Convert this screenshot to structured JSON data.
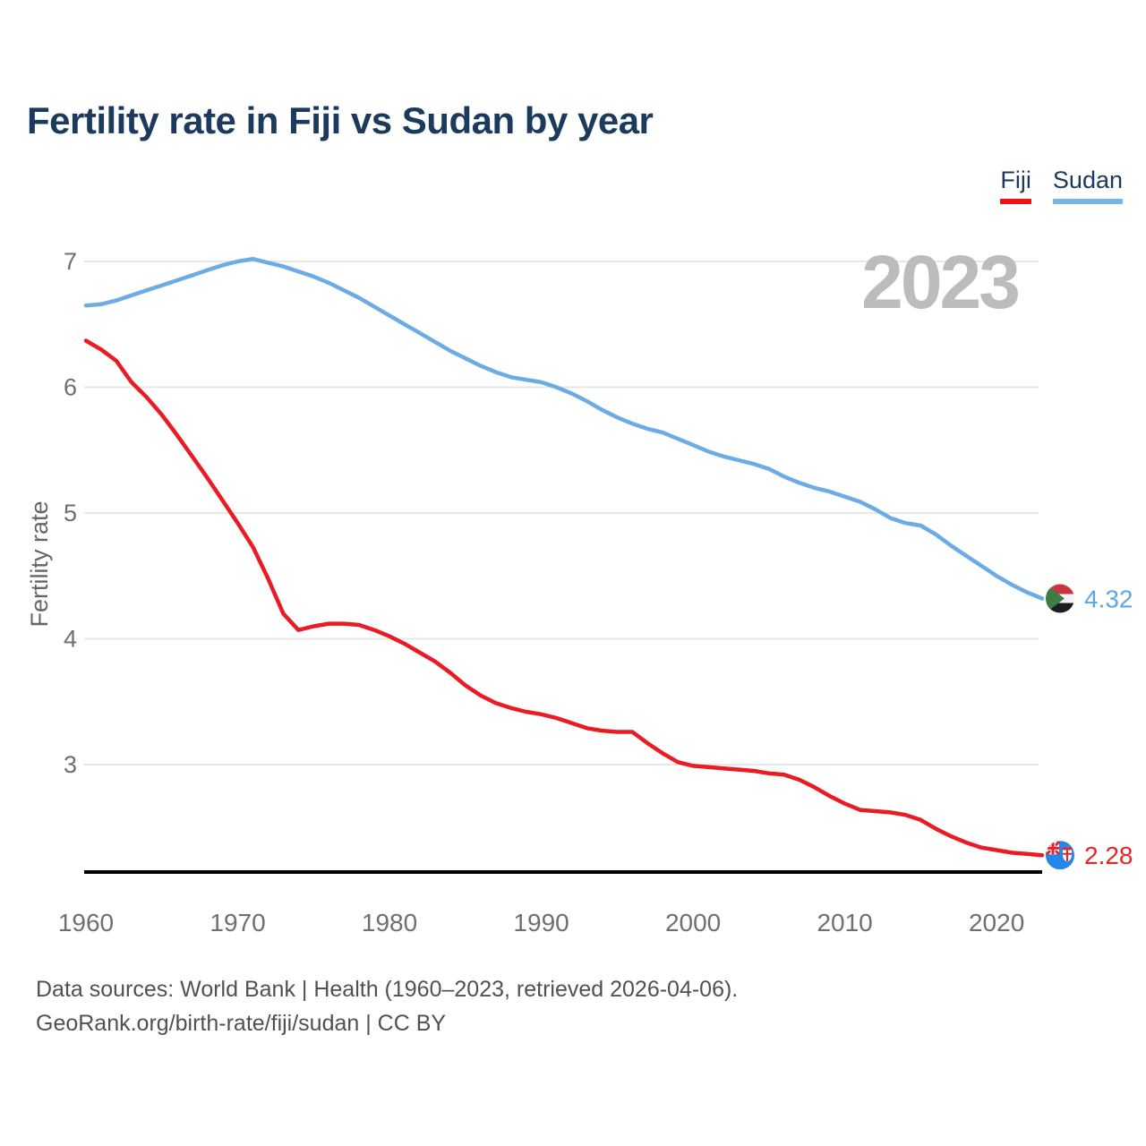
{
  "page": {
    "title": "Fertility rate in Fiji vs Sudan by year",
    "watermark": "2023",
    "footer": {
      "line1": "Data sources: World Bank | Health (1960–2023, retrieved 2026-04-06).",
      "line2": "GeoRank.org/birth-rate/fiji/sudan | CC BY"
    }
  },
  "legend": {
    "items": [
      {
        "label": "Fiji",
        "color": "#ED1111"
      },
      {
        "label": "Sudan",
        "color": "#79B4E6"
      }
    ]
  },
  "chart_data": {
    "type": "line",
    "title": "Fertility rate in Fiji vs Sudan by year",
    "xlabel": "",
    "ylabel": "Fertility rate",
    "grid": "horizontal",
    "legend_position": "top-right",
    "xlim": [
      1960,
      2023
    ],
    "ylim": [
      2.14,
      7.3
    ],
    "yticks": [
      3,
      4,
      5,
      6,
      7
    ],
    "xticks": [
      1960,
      1970,
      1980,
      1990,
      2000,
      2010,
      2020
    ],
    "x": [
      1960,
      1961,
      1962,
      1963,
      1964,
      1965,
      1966,
      1967,
      1968,
      1969,
      1970,
      1971,
      1972,
      1973,
      1974,
      1975,
      1976,
      1977,
      1978,
      1979,
      1980,
      1981,
      1982,
      1983,
      1984,
      1985,
      1986,
      1987,
      1988,
      1989,
      1990,
      1991,
      1992,
      1993,
      1994,
      1995,
      1996,
      1997,
      1998,
      1999,
      2000,
      2001,
      2002,
      2003,
      2004,
      2005,
      2006,
      2007,
      2008,
      2009,
      2010,
      2011,
      2012,
      2013,
      2014,
      2015,
      2016,
      2017,
      2018,
      2019,
      2020,
      2021,
      2022,
      2023
    ],
    "series": [
      {
        "name": "Fiji",
        "color": "#EA1B22",
        "values": [
          6.37,
          6.3,
          6.21,
          6.04,
          5.92,
          5.78,
          5.62,
          5.45,
          5.28,
          5.1,
          4.92,
          4.73,
          4.48,
          4.2,
          4.07,
          4.1,
          4.12,
          4.12,
          4.11,
          4.07,
          4.02,
          3.96,
          3.89,
          3.82,
          3.73,
          3.63,
          3.55,
          3.49,
          3.45,
          3.42,
          3.4,
          3.37,
          3.33,
          3.29,
          3.27,
          3.26,
          3.26,
          3.17,
          3.09,
          3.02,
          2.99,
          2.98,
          2.97,
          2.96,
          2.95,
          2.93,
          2.92,
          2.88,
          2.82,
          2.75,
          2.69,
          2.64,
          2.63,
          2.62,
          2.6,
          2.56,
          2.49,
          2.43,
          2.38,
          2.34,
          2.32,
          2.3,
          2.29,
          2.28
        ]
      },
      {
        "name": "Sudan",
        "color": "#6CACE4",
        "values": [
          6.65,
          6.66,
          6.69,
          6.73,
          6.77,
          6.81,
          6.85,
          6.89,
          6.93,
          6.97,
          7.0,
          7.02,
          6.99,
          6.96,
          6.92,
          6.88,
          6.83,
          6.77,
          6.71,
          6.64,
          6.57,
          6.5,
          6.43,
          6.36,
          6.29,
          6.23,
          6.17,
          6.12,
          6.08,
          6.06,
          6.04,
          6.0,
          5.95,
          5.89,
          5.82,
          5.76,
          5.71,
          5.67,
          5.64,
          5.59,
          5.54,
          5.49,
          5.45,
          5.42,
          5.39,
          5.35,
          5.29,
          5.24,
          5.2,
          5.17,
          5.13,
          5.09,
          5.03,
          4.96,
          4.92,
          4.9,
          4.83,
          4.74,
          4.66,
          4.58,
          4.5,
          4.43,
          4.37,
          4.32
        ]
      }
    ],
    "end_labels": [
      {
        "series": "Sudan",
        "value": "4.32",
        "color": "#5FA5E8",
        "flag": "sudan-flag"
      },
      {
        "series": "Fiji",
        "value": "2.28",
        "color": "#EE2224",
        "flag": "fiji-flag"
      }
    ]
  }
}
